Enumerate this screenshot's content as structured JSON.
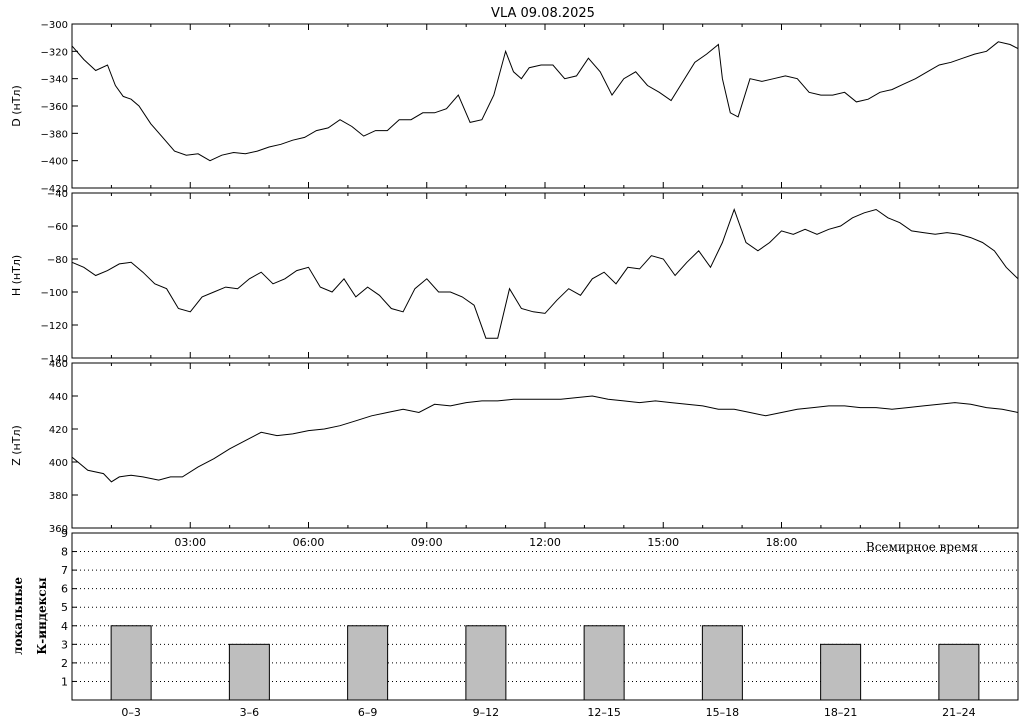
{
  "title": "VLA   09.08.2025",
  "chart_data": [
    {
      "type": "line",
      "ylabel": "D (нТл)",
      "ylim": [
        -420,
        -300
      ],
      "yticks": [
        -300,
        -320,
        -340,
        -360,
        -380,
        -400,
        -420
      ],
      "x_unit": "hours UT",
      "xlim": [
        0,
        24
      ],
      "series": [
        {
          "x": [
            0,
            0.3,
            0.6,
            0.9,
            1.1,
            1.3,
            1.5,
            1.7,
            2.0,
            2.3,
            2.6,
            2.9,
            3.2,
            3.5,
            3.8,
            4.1,
            4.4,
            4.7,
            5.0,
            5.3,
            5.6,
            5.9,
            6.2,
            6.5,
            6.8,
            7.1,
            7.4,
            7.7,
            8.0,
            8.3,
            8.6,
            8.9,
            9.2,
            9.5,
            9.8,
            10.1,
            10.4,
            10.7,
            11.0,
            11.2,
            11.4,
            11.6,
            11.9,
            12.2,
            12.5,
            12.8,
            13.1,
            13.4,
            13.7,
            14.0,
            14.3,
            14.6,
            14.9,
            15.2,
            15.5,
            15.8,
            16.1,
            16.4,
            16.5,
            16.7,
            16.9,
            17.2,
            17.5,
            17.8,
            18.1,
            18.4,
            18.7,
            19.0,
            19.3,
            19.6,
            19.9,
            20.2,
            20.5,
            20.8,
            21.1,
            21.4,
            21.7,
            22.0,
            22.3,
            22.6,
            22.9,
            23.2,
            23.5,
            23.8,
            24.0
          ],
          "y": [
            -316,
            -326,
            -334,
            -330,
            -345,
            -353,
            -355,
            -360,
            -373,
            -383,
            -393,
            -396,
            -395,
            -400,
            -396,
            -394,
            -395,
            -393,
            -390,
            -388,
            -385,
            -383,
            -378,
            -376,
            -370,
            -375,
            -382,
            -378,
            -378,
            -370,
            -370,
            -365,
            -365,
            -362,
            -352,
            -372,
            -370,
            -352,
            -320,
            -335,
            -340,
            -332,
            -330,
            -330,
            -340,
            -338,
            -325,
            -335,
            -352,
            -340,
            -335,
            -345,
            -350,
            -356,
            -342,
            -328,
            -322,
            -315,
            -340,
            -365,
            -368,
            -340,
            -342,
            -340,
            -338,
            -340,
            -350,
            -352,
            -352,
            -350,
            -357,
            -355,
            -350,
            -348,
            -344,
            -340,
            -335,
            -330,
            -328,
            -325,
            -322,
            -320,
            -313,
            -315,
            -318
          ]
        }
      ]
    },
    {
      "type": "line",
      "ylabel": "H (нТл)",
      "ylim": [
        -140,
        -40
      ],
      "yticks": [
        -40,
        -60,
        -80,
        -100,
        -120,
        -140
      ],
      "x_unit": "hours UT",
      "xlim": [
        0,
        24
      ],
      "series": [
        {
          "x": [
            0,
            0.3,
            0.6,
            0.9,
            1.2,
            1.5,
            1.8,
            2.1,
            2.4,
            2.7,
            3.0,
            3.3,
            3.6,
            3.9,
            4.2,
            4.5,
            4.8,
            5.1,
            5.4,
            5.7,
            6.0,
            6.3,
            6.6,
            6.9,
            7.2,
            7.5,
            7.8,
            8.1,
            8.4,
            8.7,
            9.0,
            9.3,
            9.6,
            9.9,
            10.2,
            10.5,
            10.8,
            11.1,
            11.4,
            11.7,
            12.0,
            12.3,
            12.6,
            12.9,
            13.2,
            13.5,
            13.8,
            14.1,
            14.4,
            14.7,
            15.0,
            15.3,
            15.6,
            15.9,
            16.2,
            16.5,
            16.8,
            17.1,
            17.4,
            17.7,
            18.0,
            18.3,
            18.6,
            18.9,
            19.2,
            19.5,
            19.8,
            20.1,
            20.4,
            20.7,
            21.0,
            21.3,
            21.6,
            21.9,
            22.2,
            22.5,
            22.8,
            23.1,
            23.4,
            23.7,
            24.0
          ],
          "y": [
            -82,
            -85,
            -90,
            -87,
            -83,
            -82,
            -88,
            -95,
            -98,
            -110,
            -112,
            -103,
            -100,
            -97,
            -98,
            -92,
            -88,
            -95,
            -92,
            -87,
            -85,
            -97,
            -100,
            -92,
            -103,
            -97,
            -102,
            -110,
            -112,
            -98,
            -92,
            -100,
            -100,
            -103,
            -108,
            -128,
            -128,
            -98,
            -110,
            -112,
            -113,
            -105,
            -98,
            -102,
            -92,
            -88,
            -95,
            -85,
            -86,
            -78,
            -80,
            -90,
            -82,
            -75,
            -85,
            -70,
            -50,
            -70,
            -75,
            -70,
            -63,
            -65,
            -62,
            -65,
            -62,
            -60,
            -55,
            -52,
            -50,
            -55,
            -58,
            -63,
            -64,
            -65,
            -64,
            -65,
            -67,
            -70,
            -75,
            -85,
            -92
          ]
        }
      ]
    },
    {
      "type": "line",
      "ylabel": "Z (нТл)",
      "ylim": [
        360,
        460
      ],
      "yticks": [
        360,
        380,
        400,
        420,
        440,
        460
      ],
      "x_unit": "hours UT",
      "xlim": [
        0,
        24
      ],
      "series": [
        {
          "x": [
            0,
            0.4,
            0.8,
            1.0,
            1.2,
            1.5,
            1.8,
            2.2,
            2.5,
            2.8,
            3.2,
            3.6,
            4.0,
            4.4,
            4.8,
            5.2,
            5.6,
            6.0,
            6.4,
            6.8,
            7.2,
            7.6,
            8.0,
            8.4,
            8.8,
            9.2,
            9.6,
            10.0,
            10.4,
            10.8,
            11.2,
            11.6,
            12.0,
            12.4,
            12.8,
            13.2,
            13.6,
            14.0,
            14.4,
            14.8,
            15.2,
            15.6,
            16.0,
            16.4,
            16.8,
            17.2,
            17.6,
            18.0,
            18.4,
            18.8,
            19.2,
            19.6,
            20.0,
            20.4,
            20.8,
            21.2,
            21.6,
            22.0,
            22.4,
            22.8,
            23.2,
            23.6,
            24.0
          ],
          "y": [
            403,
            395,
            393,
            388,
            391,
            392,
            391,
            389,
            391,
            391,
            397,
            402,
            408,
            413,
            418,
            416,
            417,
            419,
            420,
            422,
            425,
            428,
            430,
            432,
            430,
            435,
            434,
            436,
            437,
            437,
            438,
            438,
            438,
            438,
            439,
            440,
            438,
            437,
            436,
            437,
            436,
            435,
            434,
            432,
            432,
            430,
            428,
            430,
            432,
            433,
            434,
            434,
            433,
            433,
            432,
            433,
            434,
            435,
            436,
            435,
            433,
            432,
            430
          ]
        }
      ]
    },
    {
      "type": "bar",
      "ylabel": "локальные К-индексы",
      "xlabel": "Всемирное время",
      "ylim": [
        0,
        9
      ],
      "yticks": [
        1,
        2,
        3,
        4,
        5,
        6,
        7,
        8,
        9
      ],
      "categories": [
        "0–3",
        "3–6",
        "6–9",
        "9–12",
        "12–15",
        "15–18",
        "18–21",
        "21–24"
      ],
      "values": [
        4,
        3,
        4,
        4,
        4,
        4,
        3,
        3
      ],
      "grid": "dotted horizontal",
      "bar_color": "#bebebe"
    }
  ],
  "time_ticks": [
    "03:00",
    "06:00",
    "09:00",
    "12:00",
    "15:00",
    "18:00"
  ],
  "time_axis_label": "Всемирное время",
  "colors": {
    "line": "#000000",
    "bar": "#bebebe",
    "background": "#ffffff"
  }
}
